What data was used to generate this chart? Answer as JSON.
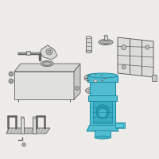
{
  "bg_color": "#eeece8",
  "highlight_color": "#52bdd0",
  "line_color": "#909090",
  "dark_line": "#606060",
  "dark2": "#484848",
  "gray_fill": "#d8d8d4",
  "gray_mid": "#c8c8c4",
  "gray_dark": "#b8b8b4",
  "gray_light": "#e0e0dc",
  "white_ish": "#f0f0ec"
}
